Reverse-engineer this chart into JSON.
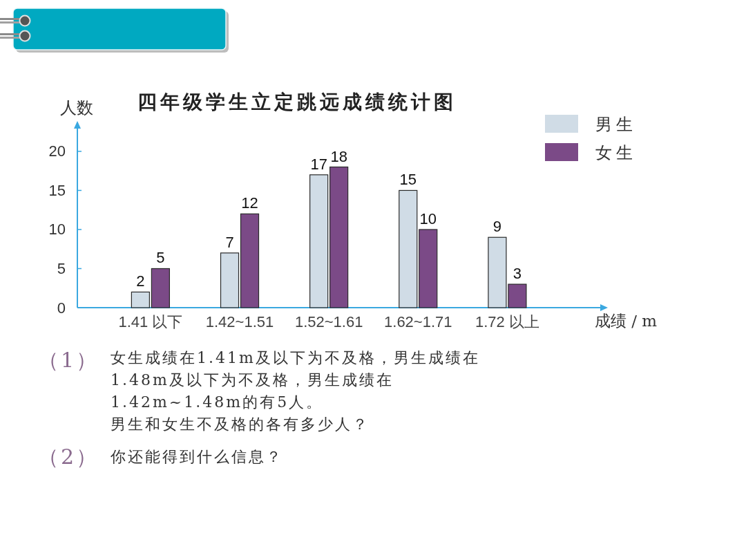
{
  "chart_data": {
    "type": "bar",
    "title": "四年级学生立定跳远成绩统计图",
    "xlabel": "成绩 / m",
    "ylabel": "人数",
    "categories": [
      "1.41 以下",
      "1.42~1.51",
      "1.52~1.61",
      "1.62~1.71",
      "1.72 以上"
    ],
    "series": [
      {
        "name": "男生",
        "color": "#d0dce6",
        "values": [
          2,
          7,
          17,
          15,
          9
        ]
      },
      {
        "name": "女生",
        "color": "#7b4a87",
        "values": [
          5,
          12,
          18,
          10,
          3
        ]
      }
    ],
    "ylim": [
      0,
      23
    ],
    "yticks": [
      0,
      5,
      10,
      15,
      20
    ],
    "data_labels": true,
    "legend": "top right",
    "annotations": [
      "（1）",
      "女生成绩在1.41m及以下为不及格，男生成绩在",
      "1.48m及以下为不及格，男生成绩在",
      "1.42m~1.48m的有5人。",
      "男生和女生不及格的各有多少人？",
      "（2）",
      "你还能得到什么信息？"
    ]
  }
}
